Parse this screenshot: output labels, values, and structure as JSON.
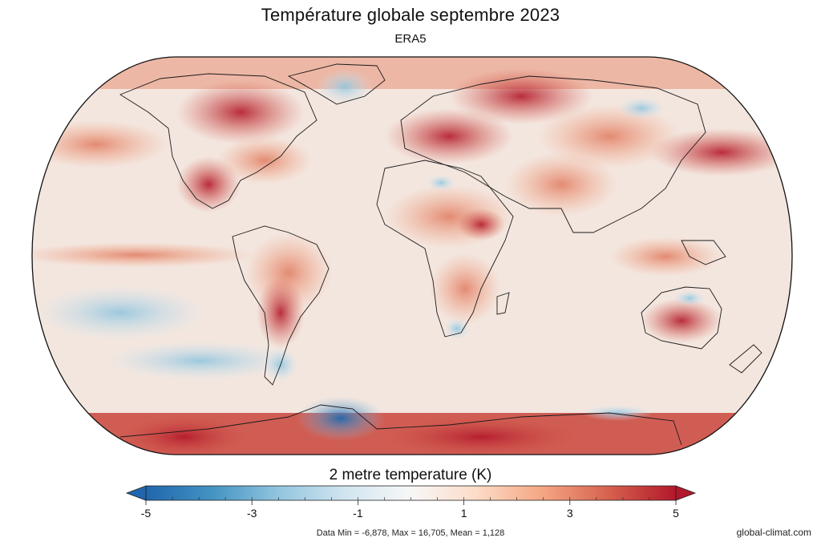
{
  "title": "Température globale septembre 2023",
  "subtitle": "ERA5",
  "colorbar": {
    "label": "2 metre temperature (K)",
    "min": -5,
    "max": 5,
    "extend": "both",
    "ticks": [
      "-5",
      "-3",
      "-1",
      "1",
      "3",
      "5"
    ],
    "colors": [
      "#2166ac",
      "#4393c3",
      "#92c5de",
      "#d1e5f0",
      "#f7f7f7",
      "#fddbc7",
      "#f4a582",
      "#d6604d",
      "#b2182b"
    ]
  },
  "stats": "Data Min = -6,878, Max = 16,705, Mean = 1,128",
  "credit": "global-climat.com",
  "map": {
    "projection": "equal-earth",
    "variable": "2 metre temperature anomaly",
    "background_color": "#f3e3da"
  }
}
